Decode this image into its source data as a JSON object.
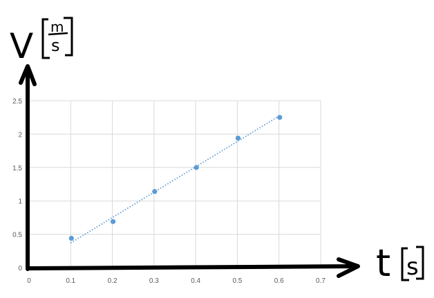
{
  "chart_data": {
    "type": "scatter",
    "title": "",
    "xlabel": "t",
    "xlabel_unit": "s",
    "ylabel": "V",
    "ylabel_unit_numerator": "m",
    "ylabel_unit_denominator": "s",
    "xlim": [
      0,
      0.7
    ],
    "ylim": [
      0,
      2.5
    ],
    "x_ticks": [
      "0",
      "0.1",
      "0.2",
      "0.3",
      "0.4",
      "0.5",
      "0.6",
      "0.7"
    ],
    "y_ticks": [
      "0",
      "0.5",
      "1",
      "1.5",
      "2",
      "2.5"
    ],
    "grid": true,
    "series": [
      {
        "x": [
          0.1,
          0.2,
          0.3,
          0.4,
          0.5,
          0.6
        ],
        "y": [
          0.44,
          0.69,
          1.14,
          1.5,
          1.94,
          2.25
        ],
        "color": "#5b9bd5"
      }
    ],
    "trendline": {
      "type": "linear",
      "style": "dotted",
      "x": [
        0.1,
        0.6
      ],
      "y": [
        0.37,
        2.27
      ],
      "color": "#5b9bd5"
    }
  }
}
